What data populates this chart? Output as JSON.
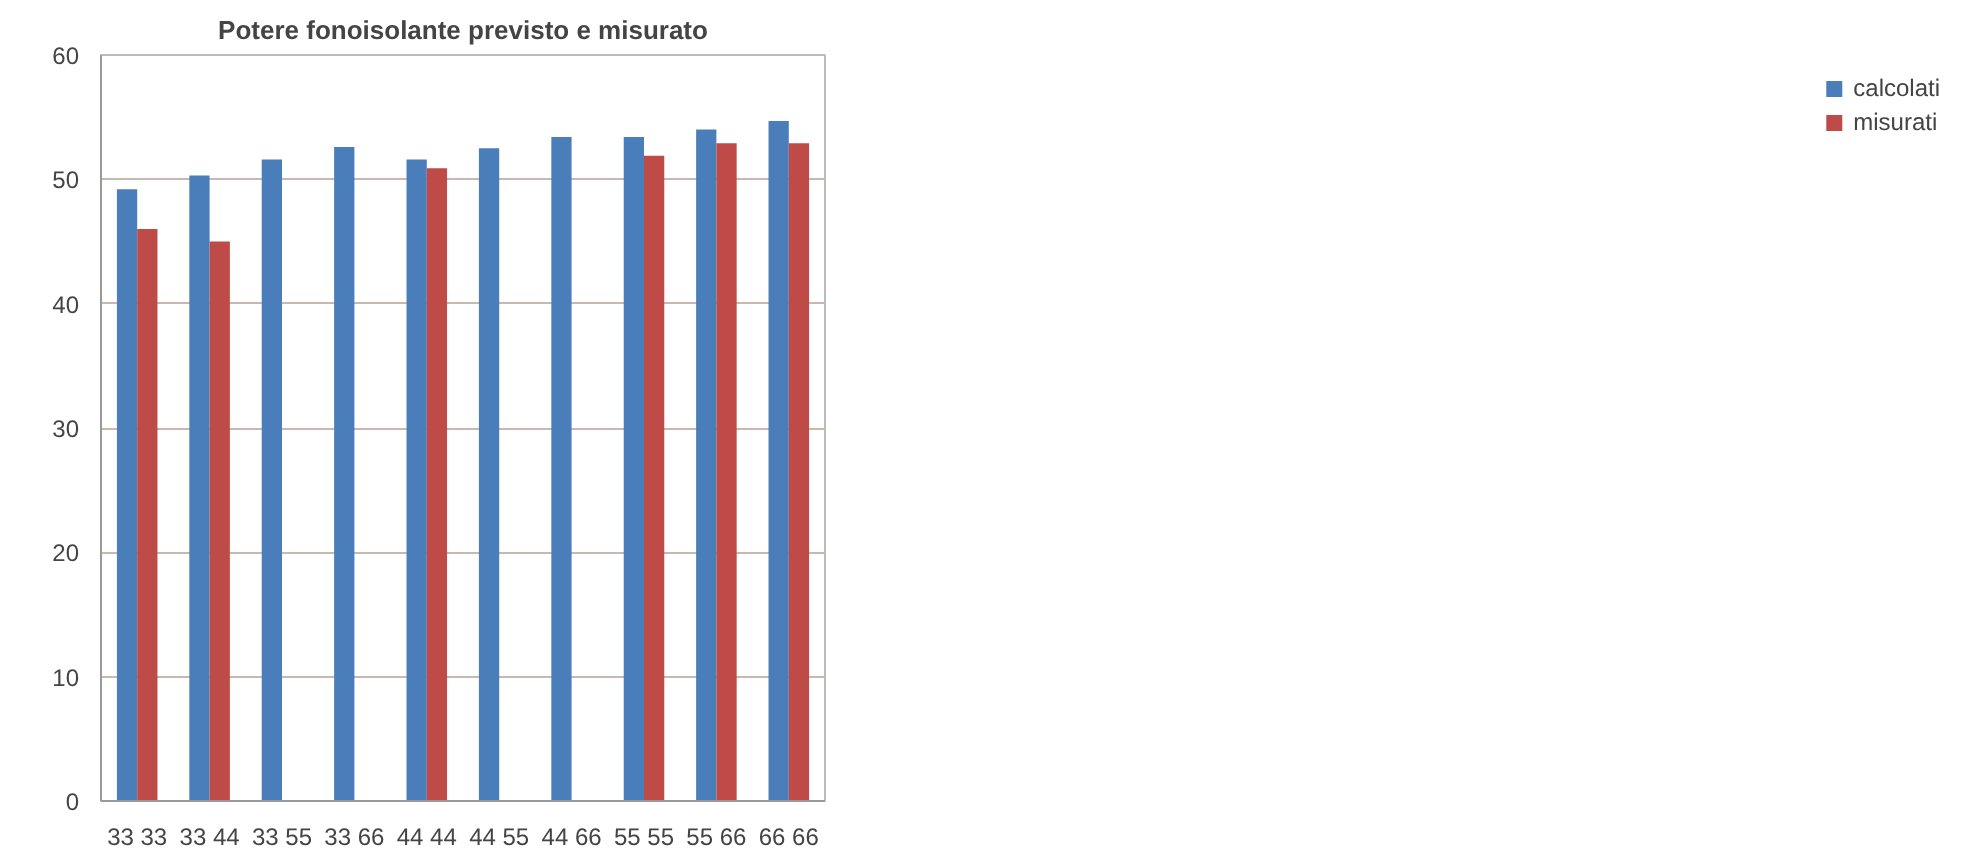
{
  "chart_data": {
    "type": "bar",
    "title": "Potere fonoisolante previsto e misurato",
    "categories": [
      "33 33",
      "33 44",
      "33 55",
      "33 66",
      "44 44",
      "44 55",
      "44 66",
      "55 55",
      "55 66",
      "66 66"
    ],
    "series": [
      {
        "name": "calcolati",
        "color": "#4a7ebb",
        "values": [
          49.2,
          50.3,
          51.6,
          52.6,
          51.6,
          52.5,
          53.4,
          53.4,
          54.0,
          54.7
        ]
      },
      {
        "name": "misurati",
        "color": "#be4b48",
        "values": [
          46.0,
          45.0,
          null,
          null,
          50.9,
          null,
          null,
          51.9,
          52.9,
          52.9
        ]
      }
    ],
    "ylim": [
      0,
      60
    ],
    "yticks": [
      0,
      10,
      20,
      30,
      40,
      50,
      60
    ],
    "grid": "y",
    "legend": "right"
  }
}
